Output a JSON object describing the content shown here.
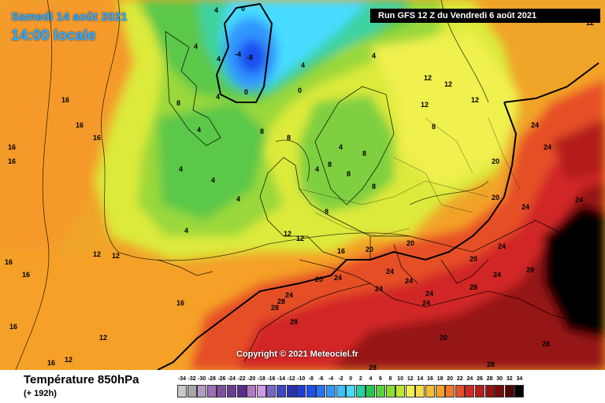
{
  "header": {
    "date": "Samedi 14 août 2021",
    "time": "14:00 locale",
    "run": "Run GFS 12 Z du Vendredi 6 août 2021"
  },
  "copyright": "Copyright © 2021 Meteociel.fr",
  "legend": {
    "title": "Température 850hPa",
    "subtitle": "(+ 192h)",
    "scale": [
      {
        "v": "-34",
        "c": "#c8c8c8"
      },
      {
        "v": "-32",
        "c": "#a8a8a8"
      },
      {
        "v": "-30",
        "c": "#b49bc8"
      },
      {
        "v": "-28",
        "c": "#9a6fb4"
      },
      {
        "v": "-26",
        "c": "#8050a0"
      },
      {
        "v": "-24",
        "c": "#6a3c96"
      },
      {
        "v": "-22",
        "c": "#5a2d8c"
      },
      {
        "v": "-20",
        "c": "#b478c8"
      },
      {
        "v": "-18",
        "c": "#d29be6"
      },
      {
        "v": "-16",
        "c": "#7864c8"
      },
      {
        "v": "-14",
        "c": "#3c46c8"
      },
      {
        "v": "-12",
        "c": "#2a32b4"
      },
      {
        "v": "-10",
        "c": "#1e3cdc"
      },
      {
        "v": "-8",
        "c": "#1e50f0"
      },
      {
        "v": "-6",
        "c": "#2873f5"
      },
      {
        "v": "-4",
        "c": "#3296ff"
      },
      {
        "v": "-2",
        "c": "#3cbeff"
      },
      {
        "v": "0",
        "c": "#46dcff"
      },
      {
        "v": "2",
        "c": "#23d2a0"
      },
      {
        "v": "4",
        "c": "#28c850"
      },
      {
        "v": "6",
        "c": "#5ad23c"
      },
      {
        "v": "8",
        "c": "#8cdc32"
      },
      {
        "v": "10",
        "c": "#bee632"
      },
      {
        "v": "12",
        "c": "#f0f050"
      },
      {
        "v": "14",
        "c": "#f5dc46"
      },
      {
        "v": "16",
        "c": "#f5be32"
      },
      {
        "v": "18",
        "c": "#f5a028"
      },
      {
        "v": "20",
        "c": "#f07828"
      },
      {
        "v": "22",
        "c": "#e65028"
      },
      {
        "v": "24",
        "c": "#d22828"
      },
      {
        "v": "26",
        "c": "#b41e1e"
      },
      {
        "v": "28",
        "c": "#961414"
      },
      {
        "v": "30",
        "c": "#780a0a"
      },
      {
        "v": "32",
        "c": "#500505"
      },
      {
        "v": "34",
        "c": "#000000"
      }
    ]
  },
  "isotherm_labels": [
    "0",
    "-4",
    "-8",
    "0",
    "4",
    "8",
    "12",
    "16",
    "20",
    "24",
    "28"
  ]
}
